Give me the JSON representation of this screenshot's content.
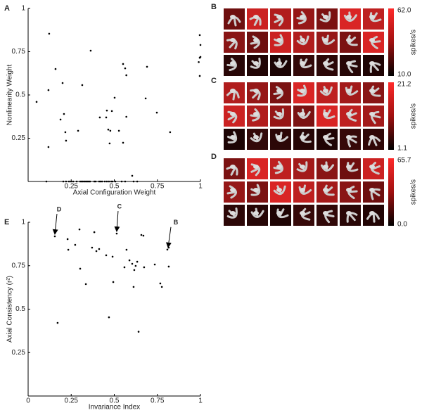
{
  "chart_data": [
    {
      "type": "scatter",
      "panel_label": "A",
      "xlabel": "Axial Configuration Weight",
      "ylabel": "Nonlinearity Weight",
      "x": [
        0.049,
        0.122,
        0.118,
        0.118,
        0.159,
        0.188,
        0.2,
        0.208,
        0.216,
        0.22,
        0.29,
        0.314,
        0.363,
        0.416,
        0.453,
        0.457,
        0.465,
        0.473,
        0.477,
        0.486,
        0.502,
        0.527,
        0.551,
        0.563,
        0.57,
        0.551,
        0.57,
        0.682,
        0.69,
        0.747,
        0.824,
        0.996,
        1,
        0.996,
        1,
        0.99,
        0.996,
        0.604,
        0.106,
        0.204,
        0.22,
        0.237,
        0.249,
        0.261,
        0.282,
        0.302,
        0.31,
        0.318,
        0.327,
        0.335,
        0.343,
        0.351,
        0.359,
        0.384,
        0.392,
        0.412,
        0.42,
        0.429,
        0.445,
        0.457,
        0.469,
        0.482,
        0.49,
        0.506,
        0.543,
        0.563,
        0.612,
        0.633
      ],
      "values": [
        0.46,
        0.854,
        0.528,
        0.199,
        0.65,
        0.358,
        0.569,
        0.39,
        0.285,
        0.236,
        0.293,
        0.557,
        0.756,
        0.37,
        0.37,
        0.41,
        0.3,
        0.22,
        0.293,
        0.407,
        0.484,
        0.293,
        0.679,
        0.654,
        0.614,
        0.224,
        0.374,
        0.48,
        0.663,
        0.398,
        0.285,
        0.846,
        0.789,
        0.715,
        0.72,
        0.69,
        0.61,
        0.033,
        0,
        0,
        0,
        0,
        0,
        0,
        0,
        0,
        0,
        0,
        0,
        0,
        0,
        0,
        0,
        0,
        0,
        0,
        0,
        0,
        0,
        0,
        0,
        0,
        0,
        0,
        0,
        0,
        0,
        0
      ],
      "color": "#000000",
      "xlim": [
        0,
        1
      ],
      "ylim": [
        0,
        1
      ],
      "xticks": [
        0.25,
        0.5,
        0.75,
        1
      ],
      "yticks": [
        0.25,
        0.5,
        0.75,
        1
      ]
    },
    {
      "type": "scatter",
      "panel_label": "E",
      "xlabel": "Invariance Index",
      "ylabel": "Axial Consistency (r²)",
      "x": [
        0.155,
        0.229,
        0.233,
        0.273,
        0.298,
        0.302,
        0.335,
        0.371,
        0.384,
        0.396,
        0.412,
        0.453,
        0.469,
        0.49,
        0.494,
        0.514,
        0.559,
        0.571,
        0.588,
        0.604,
        0.612,
        0.616,
        0.624,
        0.633,
        0.641,
        0.171,
        0.657,
        0.669,
        0.673,
        0.735,
        0.767,
        0.776,
        0.808,
        0.816,
        0.816
      ],
      "values": [
        0.919,
        0.903,
        0.842,
        0.87,
        0.959,
        0.733,
        0.644,
        0.854,
        0.943,
        0.834,
        0.846,
        0.81,
        0.453,
        0.802,
        0.656,
        0.935,
        0.741,
        0.842,
        0.781,
        0.761,
        0.628,
        0.725,
        0.749,
        0.773,
        0.37,
        0.421,
        0.927,
        0.923,
        0.741,
        0.757,
        0.648,
        0.628,
        0.843,
        0.854,
        0.745
      ],
      "color": "#000000",
      "xlim": [
        0,
        1
      ],
      "ylim": [
        0,
        1
      ],
      "xticks": [
        0,
        0.25,
        0.5,
        0.75,
        1
      ],
      "yticks": [
        0.25,
        0.5,
        0.75,
        1
      ],
      "annotations": [
        {
          "text": "D",
          "x": 0.155,
          "y": 0.919
        },
        {
          "text": "C",
          "x": 0.514,
          "y": 0.935
        },
        {
          "text": "B",
          "x": 0.808,
          "y": 0.843
        }
      ]
    }
  ],
  "image_panels": [
    {
      "label": "B",
      "colorbar_max": "62.0",
      "colorbar_min": "10.0",
      "unit": "spikes/s"
    },
    {
      "label": "C",
      "colorbar_max": "21.2",
      "colorbar_min": "1.1",
      "unit": "spikes/s"
    },
    {
      "label": "D",
      "colorbar_max": "65.7",
      "colorbar_min": "0.0",
      "unit": "spikes/s"
    }
  ]
}
